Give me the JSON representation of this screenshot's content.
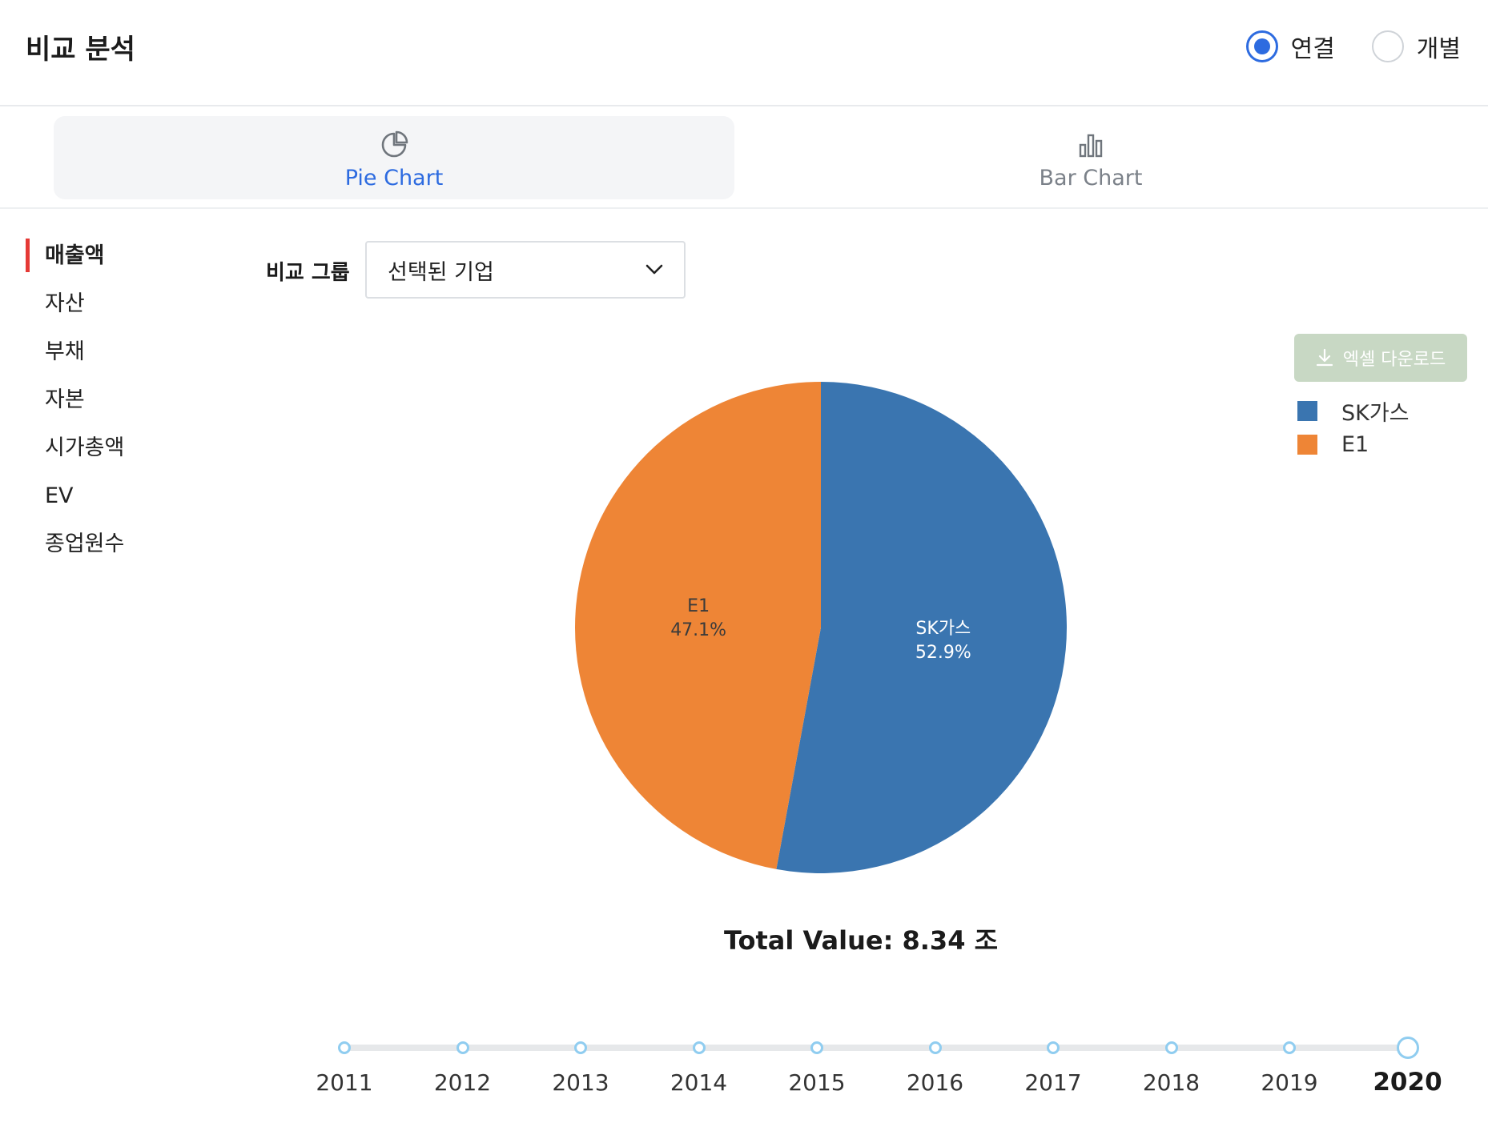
{
  "header": {
    "title": "비교 분석",
    "radio_options": [
      {
        "label": "연결",
        "checked": true
      },
      {
        "label": "개별",
        "checked": false
      }
    ]
  },
  "tabs": [
    {
      "label": "Pie Chart",
      "icon": "pie-chart-icon",
      "active": true
    },
    {
      "label": "Bar Chart",
      "icon": "bar-chart-icon",
      "active": false
    }
  ],
  "sidebar": {
    "items": [
      {
        "label": "매출액",
        "active": true
      },
      {
        "label": "자산",
        "active": false
      },
      {
        "label": "부채",
        "active": false
      },
      {
        "label": "자본",
        "active": false
      },
      {
        "label": "시가총액",
        "active": false
      },
      {
        "label": "EV",
        "active": false
      },
      {
        "label": "종업원수",
        "active": false
      }
    ]
  },
  "filter": {
    "label": "비교 그룹",
    "selected": "선택된 기업"
  },
  "excel_button": {
    "label": "엑셀 다운로드",
    "icon": "download-icon"
  },
  "chart_data": {
    "type": "pie",
    "labels": [
      "SK가스",
      "E1"
    ],
    "values": [
      52.9,
      47.1
    ],
    "value_labels": [
      "52.9%",
      "47.1%"
    ],
    "colors": [
      "#3a75b0",
      "#ee8536"
    ],
    "legend_position": "top-right",
    "total_text": "Total Value: 8.34 조"
  },
  "timeline": {
    "years": [
      "2011",
      "2012",
      "2013",
      "2014",
      "2015",
      "2016",
      "2017",
      "2018",
      "2019",
      "2020"
    ],
    "selected": "2020"
  }
}
